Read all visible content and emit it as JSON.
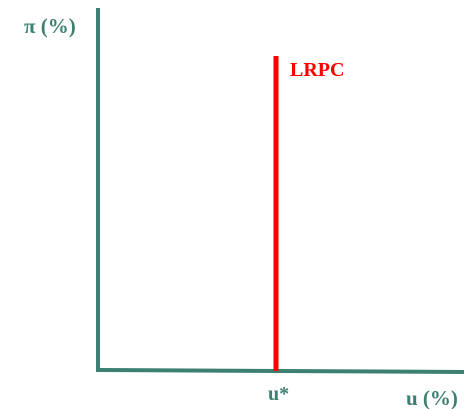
{
  "colors": {
    "axes": "#3d7f72",
    "curve": "#ff0000",
    "axis_text": "#3d7f72",
    "curve_text": "#ff0000",
    "background": "#ffffff"
  },
  "labels": {
    "y_axis": "π (%)",
    "x_axis": "u (%)",
    "natural_rate": "u*",
    "curve": "LRPC"
  }
}
